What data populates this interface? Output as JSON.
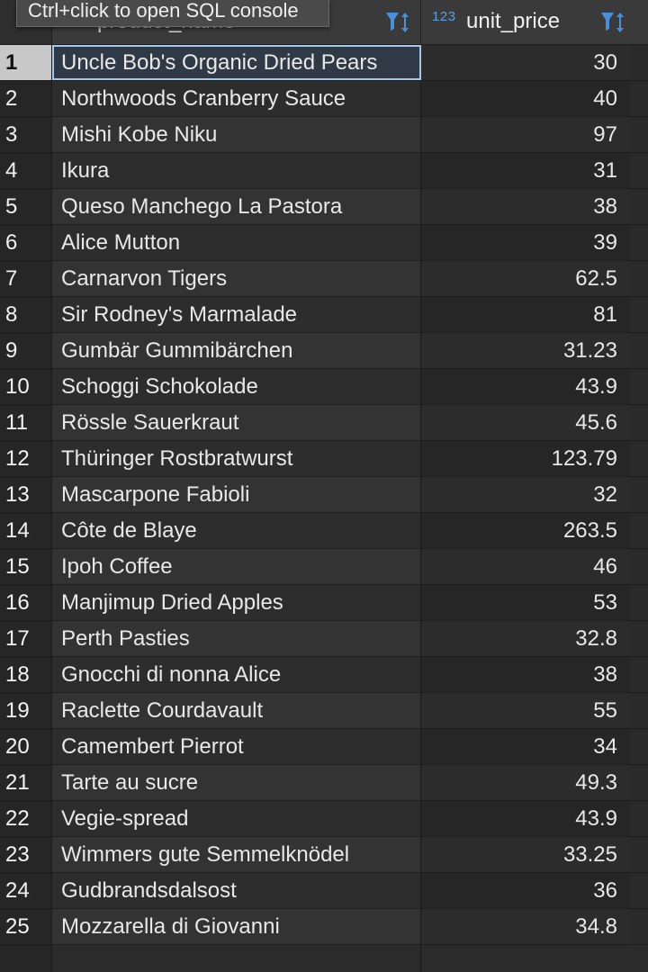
{
  "tooltip": "Ctrl+click to open SQL console",
  "columns": {
    "name_header": "product_name",
    "price_type": "123",
    "price_header": "unit_price"
  },
  "icons": {
    "filter": "filter-sort-icon"
  },
  "colors": {
    "type_badge": "#5aa0e0",
    "filter_icon": "#4a90d9",
    "selection_outline": "#a9c6e6"
  },
  "selected_row": 1,
  "rows": [
    {
      "num": "1",
      "name": "Uncle Bob's Organic Dried Pears",
      "price": "30"
    },
    {
      "num": "2",
      "name": "Northwoods Cranberry Sauce",
      "price": "40"
    },
    {
      "num": "3",
      "name": "Mishi Kobe Niku",
      "price": "97"
    },
    {
      "num": "4",
      "name": "Ikura",
      "price": "31"
    },
    {
      "num": "5",
      "name": "Queso Manchego La Pastora",
      "price": "38"
    },
    {
      "num": "6",
      "name": "Alice Mutton",
      "price": "39"
    },
    {
      "num": "7",
      "name": "Carnarvon Tigers",
      "price": "62.5"
    },
    {
      "num": "8",
      "name": "Sir Rodney's Marmalade",
      "price": "81"
    },
    {
      "num": "9",
      "name": "Gumbär Gummibärchen",
      "price": "31.23"
    },
    {
      "num": "10",
      "name": "Schoggi Schokolade",
      "price": "43.9"
    },
    {
      "num": "11",
      "name": "Rössle Sauerkraut",
      "price": "45.6"
    },
    {
      "num": "12",
      "name": "Thüringer Rostbratwurst",
      "price": "123.79"
    },
    {
      "num": "13",
      "name": "Mascarpone Fabioli",
      "price": "32"
    },
    {
      "num": "14",
      "name": "Côte de Blaye",
      "price": "263.5"
    },
    {
      "num": "15",
      "name": "Ipoh Coffee",
      "price": "46"
    },
    {
      "num": "16",
      "name": "Manjimup Dried Apples",
      "price": "53"
    },
    {
      "num": "17",
      "name": "Perth Pasties",
      "price": "32.8"
    },
    {
      "num": "18",
      "name": "Gnocchi di nonna Alice",
      "price": "38"
    },
    {
      "num": "19",
      "name": "Raclette Courdavault",
      "price": "55"
    },
    {
      "num": "20",
      "name": "Camembert Pierrot",
      "price": "34"
    },
    {
      "num": "21",
      "name": "Tarte au sucre",
      "price": "49.3"
    },
    {
      "num": "22",
      "name": "Vegie-spread",
      "price": "43.9"
    },
    {
      "num": "23",
      "name": "Wimmers gute Semmelknödel",
      "price": "33.25"
    },
    {
      "num": "24",
      "name": "Gudbrandsdalsost",
      "price": "36"
    },
    {
      "num": "25",
      "name": "Mozzarella di Giovanni",
      "price": "34.8"
    }
  ]
}
